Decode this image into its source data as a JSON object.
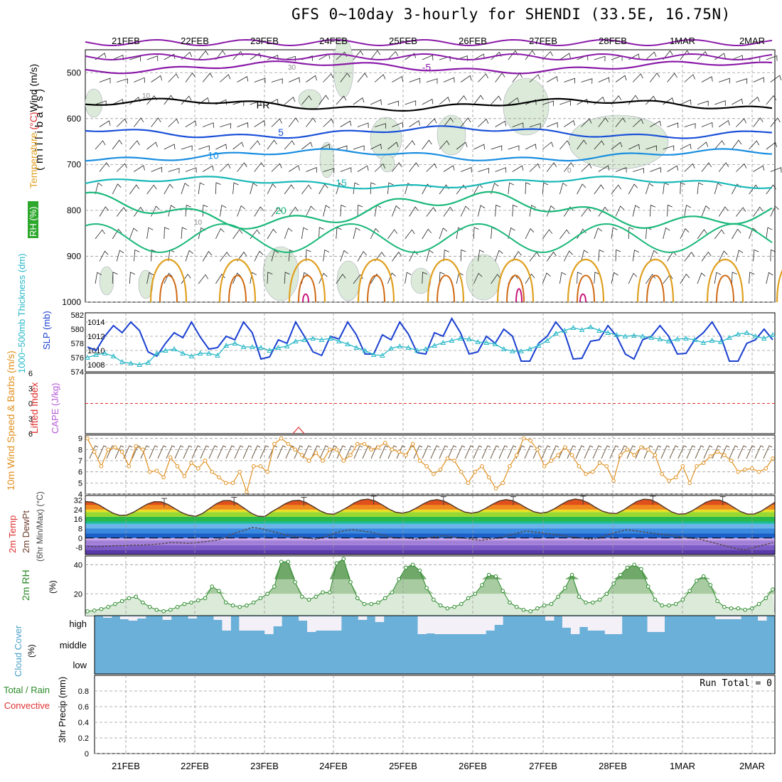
{
  "title": "GFS 0~10day 3-hourly for SHENDI (33.5E, 16.75N)",
  "colors": {
    "grid": "#9a9a9a",
    "purple": "#8a1aa8",
    "black": "#000000",
    "blue": "#1a50d8",
    "skyblue": "#1a8ee0",
    "teal": "#1ab8b8",
    "green": "#1ab87a",
    "orange": "#e0a020",
    "dkorange": "#d06a14",
    "magenta": "#c8147a",
    "rhfill": "#dcebd9",
    "slp": "#1a3fd0",
    "thick": "#2ab8c8",
    "red": "#e03030",
    "wind10": "#e09020",
    "barb": "#6e5a44",
    "rh2m": "#2a8a2a",
    "cloud": "#6ab0d8",
    "cloudgap": "#f4f0f8"
  },
  "chart_data": [
    {
      "name": "upper-air",
      "type": "contour",
      "ylabel": "(millibars)",
      "y_ticks": [
        500,
        600,
        700,
        800,
        900,
        1000
      ],
      "legend_labels": [
        "Wind (m/s)",
        "Temperature (°C)",
        "RH (%)"
      ],
      "contour_labels": [
        "-5",
        "FR",
        "5",
        "10",
        "15",
        "20",
        "30",
        "10",
        "0"
      ],
      "temperature_levels": [
        {
          "label": "-5",
          "level_mb": 488
        },
        {
          "label": "FR",
          "level_mb": 570
        },
        {
          "label": "5",
          "level_mb": 630
        },
        {
          "label": "10",
          "level_mb": 680
        },
        {
          "label": "15",
          "level_mb": 740
        },
        {
          "label": "20",
          "level_mb": 800
        }
      ]
    },
    {
      "name": "slp-thickness",
      "type": "line",
      "ylabel_left": "1000~500mb Thickness (dm)",
      "ylabel_right": "SLP (mb)",
      "left_ticks": [
        574,
        576,
        578,
        580,
        582
      ],
      "right_ticks": [
        1008,
        1010,
        1012,
        1014
      ],
      "series": [
        {
          "name": "SLP",
          "unit": "mb",
          "values": [
            1010.5,
            1010,
            1012,
            1013.5,
            1012.5,
            1014,
            1012.8,
            1009.8,
            1009.2,
            1011,
            1012.5,
            1011.8,
            1014,
            1011.9,
            1010.2,
            1010.4,
            1012,
            1011.5,
            1014,
            1012.5,
            1008.8,
            1009.1,
            1011.5,
            1011,
            1014,
            1012,
            1009.8,
            1009.3,
            1012,
            1011.6,
            1014,
            1012.2,
            1009.5,
            1009.5,
            1012.2,
            1011.5,
            1014,
            1012.3,
            1009.7,
            1009.5,
            1012.5,
            1012,
            1014.5,
            1012.5,
            1009.5,
            1009.8,
            1012,
            1011,
            1013,
            1012,
            1008.5,
            1008.5,
            1011,
            1012,
            1014,
            1012.5,
            1008.8,
            1008.9,
            1011.3,
            1011.5,
            1013.5,
            1012,
            1009.5,
            1008.8,
            1011.5,
            1012,
            1013.5,
            1012,
            1009.5,
            1009.6,
            1011.5,
            1012.5,
            1014,
            1012,
            1008.5,
            1008.5,
            1011,
            1011.5,
            1013,
            1011.5
          ]
        },
        {
          "name": "Thickness",
          "unit": "dm",
          "values": [
            576,
            576.4,
            576.6,
            576.2,
            575.4,
            575.2,
            575,
            575.3,
            576.6,
            577,
            577.2,
            576.6,
            576.2,
            576.6,
            576.6,
            576.3,
            577.7,
            578,
            577.5,
            577.5,
            577.4,
            577,
            577.4,
            577.6,
            578.3,
            578.5,
            578.7,
            578.5,
            578.7,
            578.3,
            577.9,
            577.4,
            577,
            576.4,
            576.3,
            577.3,
            577.6,
            577.4,
            577,
            577.2,
            577.7,
            578.1,
            578.4,
            578.7,
            578.6,
            578.2,
            578.1,
            577.9,
            577.2,
            576.9,
            576.9,
            577.2,
            577.7,
            578.4,
            579.4,
            579.8,
            580.2,
            579.9,
            580.3,
            579.8,
            579.5,
            579.2,
            579,
            579.1,
            579,
            578.8,
            578.6,
            578.3,
            578.6,
            578.7,
            578.5,
            578.1,
            578.4,
            578.2,
            578.8,
            579.3,
            579.5,
            579,
            578.7,
            579.2
          ]
        }
      ]
    },
    {
      "name": "stability",
      "type": "line",
      "ylabel_left": "Lifted Index",
      "ylabel_right": "CAPE (J/kg)",
      "li_ticks": [
        -6,
        -3,
        0,
        3,
        6
      ],
      "reference_line": 0
    },
    {
      "name": "wind10m",
      "type": "line",
      "ylabel": "10m Wind Speed & Barbs (m/s)",
      "y_ticks": [
        4,
        5,
        6,
        7,
        8,
        9
      ],
      "ylim": [
        4,
        9.3
      ],
      "values": [
        9,
        7.8,
        6.5,
        8,
        8.2,
        7.8,
        6.5,
        8.3,
        8,
        6,
        6.1,
        5.5,
        7.3,
        6.5,
        5.6,
        6.8,
        6.3,
        7,
        6,
        5.5,
        5,
        5,
        6,
        4.2,
        6.5,
        6.5,
        6,
        8.5,
        9,
        8.5,
        8,
        7.5,
        7,
        7.7,
        7,
        8,
        8,
        7,
        7.5,
        8.5,
        8.5,
        8,
        8.2,
        8.6,
        8,
        7.8,
        7.5,
        8.5,
        7,
        6.5,
        5.8,
        6.2,
        7.2,
        7,
        6,
        5,
        6,
        6.5,
        5.5,
        4.5,
        5,
        6.5,
        7.5,
        9,
        8.8,
        8,
        6.5,
        7,
        7.5,
        8.2,
        7.5,
        6.5,
        5.8,
        6,
        6.8,
        6.5,
        5.2,
        7.5,
        8,
        7.5,
        8.2,
        8,
        7.5,
        5.8,
        5.2,
        5.5,
        6.5,
        5,
        6.5,
        6.8,
        7.4,
        7.8,
        7.5,
        7,
        6,
        6.2,
        6.3,
        6,
        6.3,
        7.2
      ]
    },
    {
      "name": "temp2m",
      "type": "area",
      "ylabel": "2m Temp 2m DewPt (6hr Min/Max) (°C)",
      "y_ticks": [
        32,
        24,
        16,
        8,
        0,
        -8
      ],
      "ylim": [
        -14,
        36
      ],
      "temperature_max": [
        31,
        32,
        32,
        33,
        32.5,
        32.5,
        33,
        33,
        32.5,
        33
      ],
      "temperature_min": [
        19,
        18,
        20,
        21,
        21,
        21,
        21,
        20,
        20,
        20
      ],
      "dewpoint": [
        -7,
        -7.5,
        -7,
        -6.5,
        -6.5,
        -6,
        -6,
        -5.5,
        -5,
        -4,
        -4,
        -4.5,
        -4,
        -3,
        -2,
        0,
        4,
        6,
        9,
        8,
        6,
        4,
        2,
        1,
        0,
        -1,
        1,
        4,
        6,
        7,
        6,
        5,
        3,
        1,
        0,
        0,
        -1,
        0,
        1,
        2,
        1,
        0,
        -1,
        -2,
        -1,
        0,
        2,
        4,
        6,
        5,
        4,
        3,
        2,
        1,
        0,
        -1,
        0,
        3,
        5,
        7,
        6,
        5,
        4,
        3,
        2,
        1,
        0,
        -1,
        -3,
        -5,
        -7,
        -9,
        -10,
        -8,
        -6,
        -4
      ]
    },
    {
      "name": "rh2m",
      "type": "area",
      "ylabel": "2m RH (%)",
      "y_ticks": [
        20,
        40
      ],
      "ylim": [
        5,
        46
      ],
      "values": [
        8,
        8.5,
        9.5,
        11,
        13,
        15,
        17,
        18,
        14,
        11,
        9,
        8,
        9,
        11,
        13,
        14,
        15.5,
        17,
        25,
        22,
        14,
        12,
        11,
        12,
        14,
        17,
        20,
        25,
        42,
        42,
        28,
        18,
        16,
        18,
        21,
        21,
        41,
        44,
        28,
        17,
        13,
        13,
        14,
        17,
        21,
        30,
        38,
        40,
        36,
        24,
        16,
        12,
        10,
        11,
        13,
        17,
        20,
        26,
        33,
        32,
        22,
        14,
        11,
        9,
        8,
        10,
        12,
        13,
        18,
        24,
        33,
        18,
        14,
        14,
        16,
        20,
        27,
        33,
        38,
        40,
        37,
        25,
        16,
        12,
        12,
        13,
        16,
        22,
        29,
        32,
        26,
        15,
        11,
        10,
        10,
        9,
        10,
        13,
        17,
        23
      ]
    },
    {
      "name": "cloud",
      "type": "bar",
      "ylabel": "Cloud Cover (%)",
      "levels": [
        "high",
        "middle",
        "low"
      ],
      "gaps_high": [
        {
          "from": 3,
          "to": 6
        },
        {
          "from": 16,
          "to": 19
        },
        {
          "from": 39,
          "to": 50
        },
        {
          "from": 55,
          "to": 67
        }
      ]
    },
    {
      "name": "precip",
      "type": "bar",
      "ylabel": "3hr Precip (mm)",
      "legend_labels": [
        "Total / Rain",
        "Convective"
      ],
      "y_ticks": [
        0,
        0.2,
        0.4,
        0.6,
        0.8
      ],
      "ylim": [
        0,
        1
      ],
      "run_total": "Run Total = 0",
      "values": []
    }
  ],
  "x_axis": {
    "dates": [
      "21FEB",
      "22FEB",
      "23FEB",
      "24FEB",
      "25FEB",
      "26FEB",
      "27FEB",
      "28FEB",
      "1MAR",
      "2MAR"
    ]
  }
}
